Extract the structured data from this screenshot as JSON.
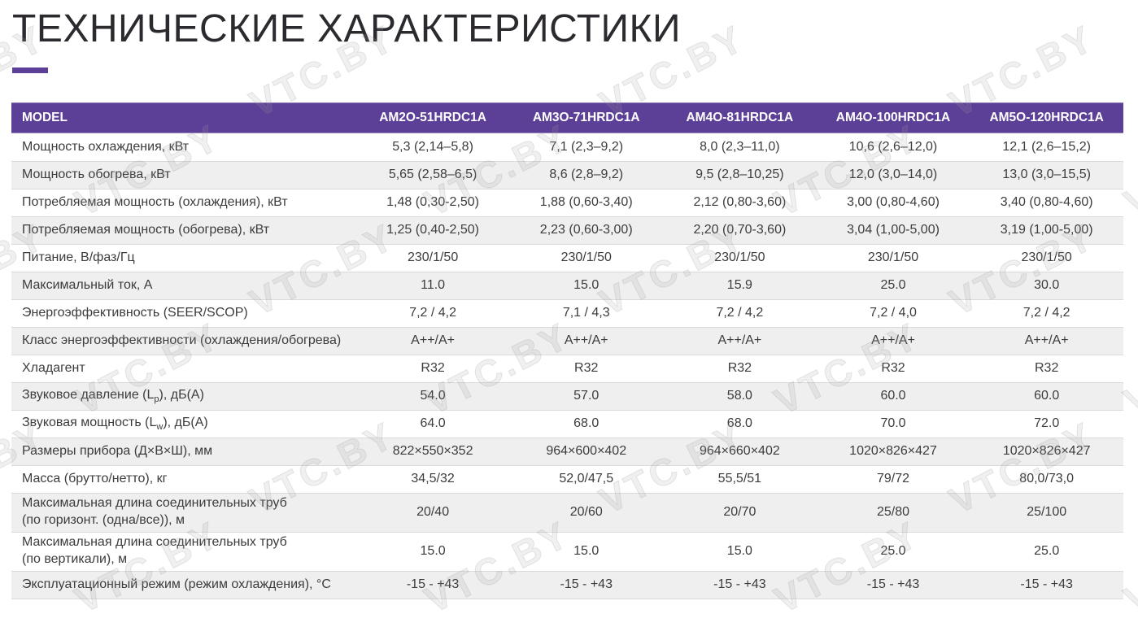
{
  "title": "ТЕХНИЧЕСКИЕ ХАРАКТЕРИСТИКИ",
  "watermark": {
    "text": "VTC.BY"
  },
  "colors": {
    "accent_purple": "#5c3f97",
    "header_bg": "#5c3f97",
    "row_alt_bg": "#efefef",
    "body_text": "#3c3c3c",
    "title_text": "#2d2a2f"
  },
  "table": {
    "columns": [
      "MODEL",
      "AM2O-51HRDC1A",
      "AM3O-71HRDC1A",
      "AM4O-81HRDC1A",
      "AM4O-100HRDC1A",
      "AM5O-120HRDC1A"
    ],
    "rows": [
      {
        "label": "Мощность охлаждения, кВт",
        "values": [
          "5,3 (2,14–5,8)",
          "7,1 (2,3–9,2)",
          "8,0 (2,3–11,0)",
          "10,6 (2,6–12,0)",
          "12,1 (2,6–15,2)"
        ]
      },
      {
        "label": "Мощность обогрева, кВт",
        "values": [
          "5,65 (2,58–6,5)",
          "8,6 (2,8–9,2)",
          "9,5 (2,8–10,25)",
          "12,0 (3,0–14,0)",
          "13,0 (3,0–15,5)"
        ]
      },
      {
        "label": "Потребляемая мощность (охлаждения), кВт",
        "values": [
          "1,48 (0,30-2,50)",
          "1,88 (0,60-3,40)",
          "2,12 (0,80-3,60)",
          "3,00 (0,80-4,60)",
          "3,40 (0,80-4,60)"
        ]
      },
      {
        "label": "Потребляемая мощность (обогрева), кВт",
        "values": [
          "1,25 (0,40-2,50)",
          "2,23 (0,60-3,00)",
          "2,20 (0,70-3,60)",
          "3,04 (1,00-5,00)",
          "3,19 (1,00-5,00)"
        ]
      },
      {
        "label": "Питание, В/фаз/Гц",
        "values": [
          "230/1/50",
          "230/1/50",
          "230/1/50",
          "230/1/50",
          "230/1/50"
        ]
      },
      {
        "label": "Максимальный ток, А",
        "values": [
          "11.0",
          "15.0",
          "15.9",
          "25.0",
          "30.0"
        ]
      },
      {
        "label": "Энергоэффективность (SEER/SCOP)",
        "values": [
          "7,2 / 4,2",
          "7,1 / 4,3",
          "7,2 / 4,2",
          "7,2 / 4,0",
          "7,2 / 4,2"
        ]
      },
      {
        "label": "Класс энергоэффективности (охлаждения/обогрева)",
        "values": [
          "A++/A+",
          "A++/A+",
          "A++/A+",
          "A++/A+",
          "A++/A+"
        ]
      },
      {
        "label": "Хладагент",
        "values": [
          "R32",
          "R32",
          "R32",
          "R32",
          "R32"
        ]
      },
      {
        "label_parts": [
          {
            "t": "Звуковое давление (L"
          },
          {
            "t": "p",
            "sub": true
          },
          {
            "t": "), дБ(А)"
          }
        ],
        "values": [
          "54.0",
          "57.0",
          "58.0",
          "60.0",
          "60.0"
        ]
      },
      {
        "label_parts": [
          {
            "t": "Звуковая мощность (L"
          },
          {
            "t": "w",
            "sub": true
          },
          {
            "t": "), дБ(А)"
          }
        ],
        "values": [
          "64.0",
          "68.0",
          "68.0",
          "70.0",
          "72.0"
        ]
      },
      {
        "label": "Размеры прибора (Д×В×Ш), мм",
        "values": [
          "822×550×352",
          "964×600×402",
          "964×660×402",
          "1020×826×427",
          "1020×826×427"
        ]
      },
      {
        "label": "Масса (брутто/нетто), кг",
        "values": [
          "34,5/32",
          "52,0/47,5",
          "55,5/51",
          "79/72",
          "80,0/73,0"
        ]
      },
      {
        "label": "Максимальная длина соединительных труб\n(по горизонт. (одна/все)), м",
        "tall": true,
        "values": [
          "20/40",
          "20/60",
          "20/70",
          "25/80",
          "25/100"
        ]
      },
      {
        "label": "Максимальная длина соединительных труб\n(по вертикали), м",
        "tall": true,
        "values": [
          "15.0",
          "15.0",
          "15.0",
          "25.0",
          "25.0"
        ]
      },
      {
        "label": "Эксплуатационный режим (режим охлаждения), °С",
        "values": [
          "-15 - +43",
          "-15 - +43",
          "-15 - +43",
          "-15 - +43",
          "-15 - +43"
        ]
      }
    ]
  }
}
